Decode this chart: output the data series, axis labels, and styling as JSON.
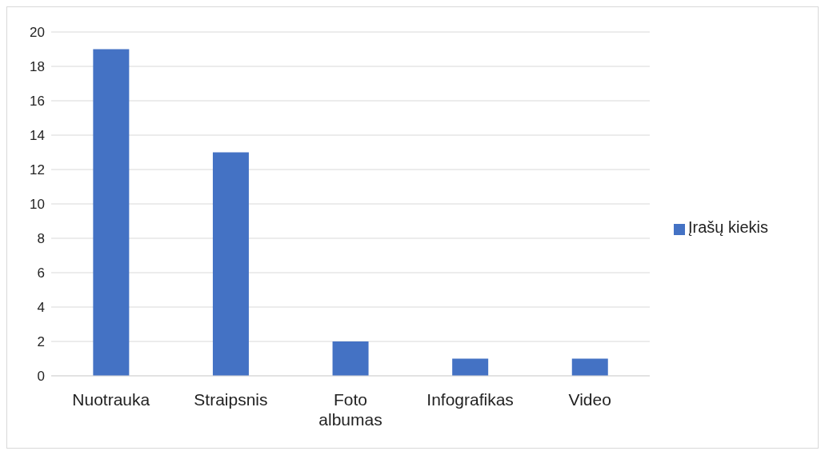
{
  "chart_data": {
    "type": "bar",
    "categories": [
      "Nuotrauka",
      "Straipsnis",
      "Foto albumas",
      "Infografikas",
      "Video"
    ],
    "series": [
      {
        "name": "Įrašų kiekis",
        "color": "#4472c4",
        "values": [
          19,
          13,
          2,
          1,
          1
        ]
      }
    ],
    "ylim": [
      0,
      20
    ],
    "yticks": [
      0,
      2,
      4,
      6,
      8,
      10,
      12,
      14,
      16,
      18,
      20
    ],
    "grid": "y",
    "legend": "right"
  }
}
